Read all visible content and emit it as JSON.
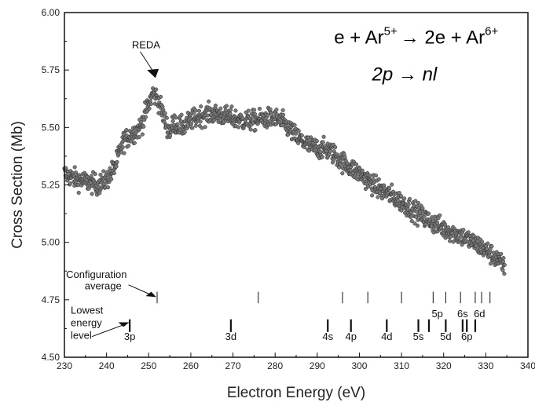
{
  "chart_data": {
    "type": "scatter",
    "title": "",
    "xlabel": "Electron Energy (eV)",
    "ylabel": "Cross Section (Mb)",
    "xlim": [
      230,
      340
    ],
    "ylim": [
      4.5,
      6.0
    ],
    "xticks": [
      "230",
      "240",
      "250",
      "260",
      "270",
      "280",
      "290",
      "300",
      "310",
      "320",
      "330",
      "340"
    ],
    "yticks": [
      "4.50",
      "4.75",
      "5.00",
      "5.25",
      "5.50",
      "5.75",
      "6.00"
    ],
    "grid": false,
    "legend": "none",
    "marker_color": "#7a7a7a",
    "trend": {
      "x": [
        230,
        232,
        234,
        236,
        238,
        240,
        242,
        244,
        246,
        248,
        250,
        251,
        252,
        253,
        254,
        255,
        256,
        258,
        260,
        262,
        265,
        268,
        270,
        272,
        275,
        278,
        280,
        282,
        285,
        288,
        290,
        293,
        296,
        300,
        304,
        308,
        312,
        316,
        320,
        324,
        328,
        332,
        334.5
      ],
      "y": [
        5.3,
        5.28,
        5.27,
        5.26,
        5.25,
        5.27,
        5.33,
        5.44,
        5.47,
        5.5,
        5.6,
        5.65,
        5.63,
        5.58,
        5.52,
        5.48,
        5.52,
        5.5,
        5.53,
        5.55,
        5.56,
        5.55,
        5.54,
        5.53,
        5.53,
        5.54,
        5.54,
        5.52,
        5.46,
        5.42,
        5.41,
        5.4,
        5.35,
        5.3,
        5.24,
        5.2,
        5.15,
        5.1,
        5.06,
        5.03,
        4.99,
        4.94,
        4.89
      ]
    },
    "reaction": {
      "prefix": "e + Ar",
      "sup1": "5+",
      "middle": "→ 2e + Ar",
      "sup2": "6+",
      "transition": "2p → nl"
    },
    "annotations": {
      "reda": "REDA",
      "config_line1": "Configuration",
      "config_line2": "average",
      "lowest_line1": "Lowest",
      "lowest_line2": "energy",
      "lowest_line3": "level"
    },
    "configuration_average_lines": [
      252,
      276,
      296,
      302,
      310,
      317.5,
      320.5,
      324,
      327.5,
      329,
      331
    ],
    "lowest_energy_lines": [
      245.5,
      269.5,
      292.5,
      298,
      306.5,
      314,
      316.5,
      320.5,
      324.5,
      325.5,
      327.5
    ],
    "shell_labels": [
      {
        "text": "3p",
        "x": 245.5,
        "row": "lower"
      },
      {
        "text": "3d",
        "x": 269.5,
        "row": "lower"
      },
      {
        "text": "4s",
        "x": 292.5,
        "row": "lower"
      },
      {
        "text": "4p",
        "x": 298,
        "row": "lower"
      },
      {
        "text": "4d",
        "x": 306.5,
        "row": "lower"
      },
      {
        "text": "5s",
        "x": 314,
        "row": "lower"
      },
      {
        "text": "5d",
        "x": 320.5,
        "row": "lower"
      },
      {
        "text": "6p",
        "x": 325.5,
        "row": "lower"
      },
      {
        "text": "5p",
        "x": 318.5,
        "row": "upper"
      },
      {
        "text": "6s",
        "x": 324.5,
        "row": "upper"
      },
      {
        "text": "6d",
        "x": 328.5,
        "row": "upper"
      }
    ]
  }
}
